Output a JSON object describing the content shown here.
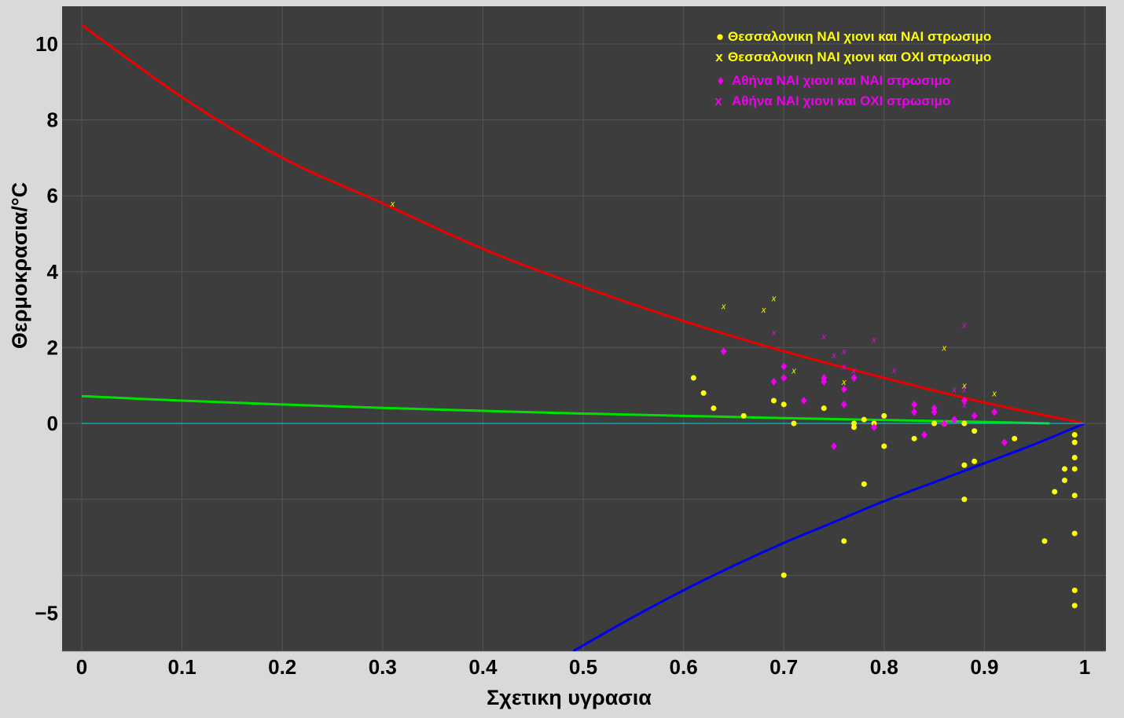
{
  "chart_data": {
    "type": "scatter",
    "xlabel": "Σχετικη υγρασια",
    "ylabel": "Θερμοκρασια/°C",
    "xlim": [
      -0.02,
      1.02
    ],
    "ylim": [
      -6.0,
      11.0
    ],
    "x_ticks": [
      0,
      0.1,
      0.2,
      0.3,
      0.4,
      0.5,
      0.6,
      0.7,
      0.8,
      0.9,
      1
    ],
    "x_tick_labels": [
      "0",
      "0.1",
      "0.2",
      "0.3",
      "0.4",
      "0.5",
      "0.6",
      "0.7",
      "0.8",
      "0.9",
      "1"
    ],
    "y_ticks": [
      10,
      8,
      6,
      4,
      2,
      0,
      -5
    ],
    "y_tick_labels": [
      "10",
      "8",
      "6",
      "4",
      "2",
      "0",
      "−5"
    ],
    "grid": true,
    "legend_position": "top-right",
    "legend": [
      {
        "symbol": "●",
        "label": "Θεσσαλονικη ΝΑΙ χιονι και ΝΑΙ στρωσιμο",
        "color": "#ffff00"
      },
      {
        "symbol": "x",
        "label": "Θεσσαλονικη ΝΑΙ χιονι και ΟΧΙ στρωσιμο",
        "color": "#ffff00"
      },
      {
        "symbol": "♦",
        "label": "Αθήνα ΝΑΙ χιονι και ΝΑΙ στρωσιμο",
        "color": "#ee00ee"
      },
      {
        "symbol": "x",
        "label": "Αθήνα ΝΑΙ χιονι και ΟΧΙ στρωσιμο",
        "color": "#ee00ee"
      }
    ],
    "colors": {
      "background": "#3d3d3d",
      "red_line": "#ee0000",
      "green_line": "#00e000",
      "blue_line": "#0000ee",
      "zero_line": "#00dddd",
      "thess": "#ffff00",
      "athens": "#ee00ee"
    },
    "lines": [
      {
        "color": "red",
        "x": [
          0,
          0.1,
          0.2,
          0.3,
          0.4,
          0.5,
          0.6,
          0.7,
          0.8,
          0.9,
          1.0
        ],
        "y": [
          10.5,
          8.6,
          7.0,
          5.8,
          4.6,
          3.6,
          2.7,
          1.9,
          1.2,
          0.55,
          0
        ]
      },
      {
        "color": "green",
        "x": [
          0,
          0.1,
          0.2,
          0.3,
          0.4,
          0.5,
          0.6,
          0.7,
          0.8,
          0.9,
          0.965
        ],
        "y": [
          0.72,
          0.6,
          0.5,
          0.41,
          0.33,
          0.26,
          0.2,
          0.14,
          0.09,
          0.04,
          0
        ]
      },
      {
        "color": "blue",
        "x": [
          0.49,
          0.55,
          0.6,
          0.65,
          0.7,
          0.75,
          0.8,
          0.85,
          0.9,
          0.95,
          1.0
        ],
        "y": [
          -6.0,
          -5.1,
          -4.4,
          -3.75,
          -3.15,
          -2.6,
          -2.05,
          -1.55,
          -1.05,
          -0.55,
          0
        ]
      },
      {
        "color": "zero",
        "x": [
          0,
          1.0
        ],
        "y": [
          0,
          0
        ]
      }
    ],
    "series": [
      {
        "name": "Θεσσαλονικη ΝΑΙ χιονι και ΝΑΙ στρωσιμο",
        "marker": "circle",
        "color": "thess",
        "points": [
          [
            0.61,
            1.2
          ],
          [
            0.62,
            0.8
          ],
          [
            0.63,
            0.4
          ],
          [
            0.66,
            0.2
          ],
          [
            0.69,
            0.6
          ],
          [
            0.7,
            0.5
          ],
          [
            0.7,
            -4.0
          ],
          [
            0.71,
            0.0
          ],
          [
            0.74,
            0.4
          ],
          [
            0.76,
            -3.1
          ],
          [
            0.77,
            0.0
          ],
          [
            0.77,
            -0.1
          ],
          [
            0.78,
            0.1
          ],
          [
            0.78,
            -1.6
          ],
          [
            0.79,
            0.0
          ],
          [
            0.8,
            0.2
          ],
          [
            0.8,
            -0.6
          ],
          [
            0.83,
            -0.4
          ],
          [
            0.85,
            0.0
          ],
          [
            0.86,
            0.0
          ],
          [
            0.88,
            0.0
          ],
          [
            0.88,
            -1.1
          ],
          [
            0.88,
            -2.0
          ],
          [
            0.89,
            -0.2
          ],
          [
            0.89,
            -1.0
          ],
          [
            0.93,
            -0.4
          ],
          [
            0.96,
            -3.1
          ],
          [
            0.97,
            -1.8
          ],
          [
            0.98,
            -1.2
          ],
          [
            0.98,
            -1.5
          ],
          [
            0.99,
            -0.3
          ],
          [
            0.99,
            -0.5
          ],
          [
            0.99,
            -0.9
          ],
          [
            0.99,
            -1.2
          ],
          [
            0.99,
            -1.9
          ],
          [
            0.99,
            -2.9
          ],
          [
            0.99,
            -4.4
          ],
          [
            0.99,
            -4.8
          ]
        ]
      },
      {
        "name": "Θεσσαλονικη ΝΑΙ χιονι και ΟΧΙ στρωσιμο",
        "marker": "x",
        "color": "thess",
        "points": [
          [
            0.31,
            5.8
          ],
          [
            0.64,
            3.1
          ],
          [
            0.68,
            3.0
          ],
          [
            0.69,
            3.3
          ],
          [
            0.71,
            1.4
          ],
          [
            0.76,
            1.1
          ],
          [
            0.86,
            2.0
          ],
          [
            0.88,
            1.0
          ],
          [
            0.91,
            0.8
          ]
        ]
      },
      {
        "name": "Αθήνα ΝΑΙ χιονι και ΝΑΙ στρωσιμο",
        "marker": "diamond",
        "color": "athens",
        "points": [
          [
            0.64,
            1.9
          ],
          [
            0.69,
            1.1
          ],
          [
            0.7,
            1.5
          ],
          [
            0.7,
            1.2
          ],
          [
            0.72,
            0.6
          ],
          [
            0.74,
            1.2
          ],
          [
            0.74,
            1.1
          ],
          [
            0.75,
            -0.6
          ],
          [
            0.76,
            0.9
          ],
          [
            0.76,
            0.5
          ],
          [
            0.77,
            1.2
          ],
          [
            0.79,
            -0.1
          ],
          [
            0.83,
            0.5
          ],
          [
            0.83,
            0.3
          ],
          [
            0.84,
            -0.3
          ],
          [
            0.85,
            0.4
          ],
          [
            0.85,
            0.3
          ],
          [
            0.86,
            0.0
          ],
          [
            0.87,
            0.1
          ],
          [
            0.88,
            0.6
          ],
          [
            0.89,
            0.2
          ],
          [
            0.91,
            0.3
          ],
          [
            0.92,
            -0.5
          ]
        ]
      },
      {
        "name": "Αθήνα ΝΑΙ χιονι και ΟΧΙ στρωσιμο",
        "marker": "x",
        "color": "athens",
        "points": [
          [
            0.69,
            2.4
          ],
          [
            0.74,
            2.3
          ],
          [
            0.75,
            1.8
          ],
          [
            0.76,
            1.9
          ],
          [
            0.76,
            1.5
          ],
          [
            0.77,
            1.4
          ],
          [
            0.79,
            2.2
          ],
          [
            0.81,
            1.4
          ],
          [
            0.87,
            0.9
          ],
          [
            0.88,
            2.6
          ],
          [
            0.88,
            0.9
          ],
          [
            0.88,
            0.5
          ]
        ]
      }
    ]
  }
}
